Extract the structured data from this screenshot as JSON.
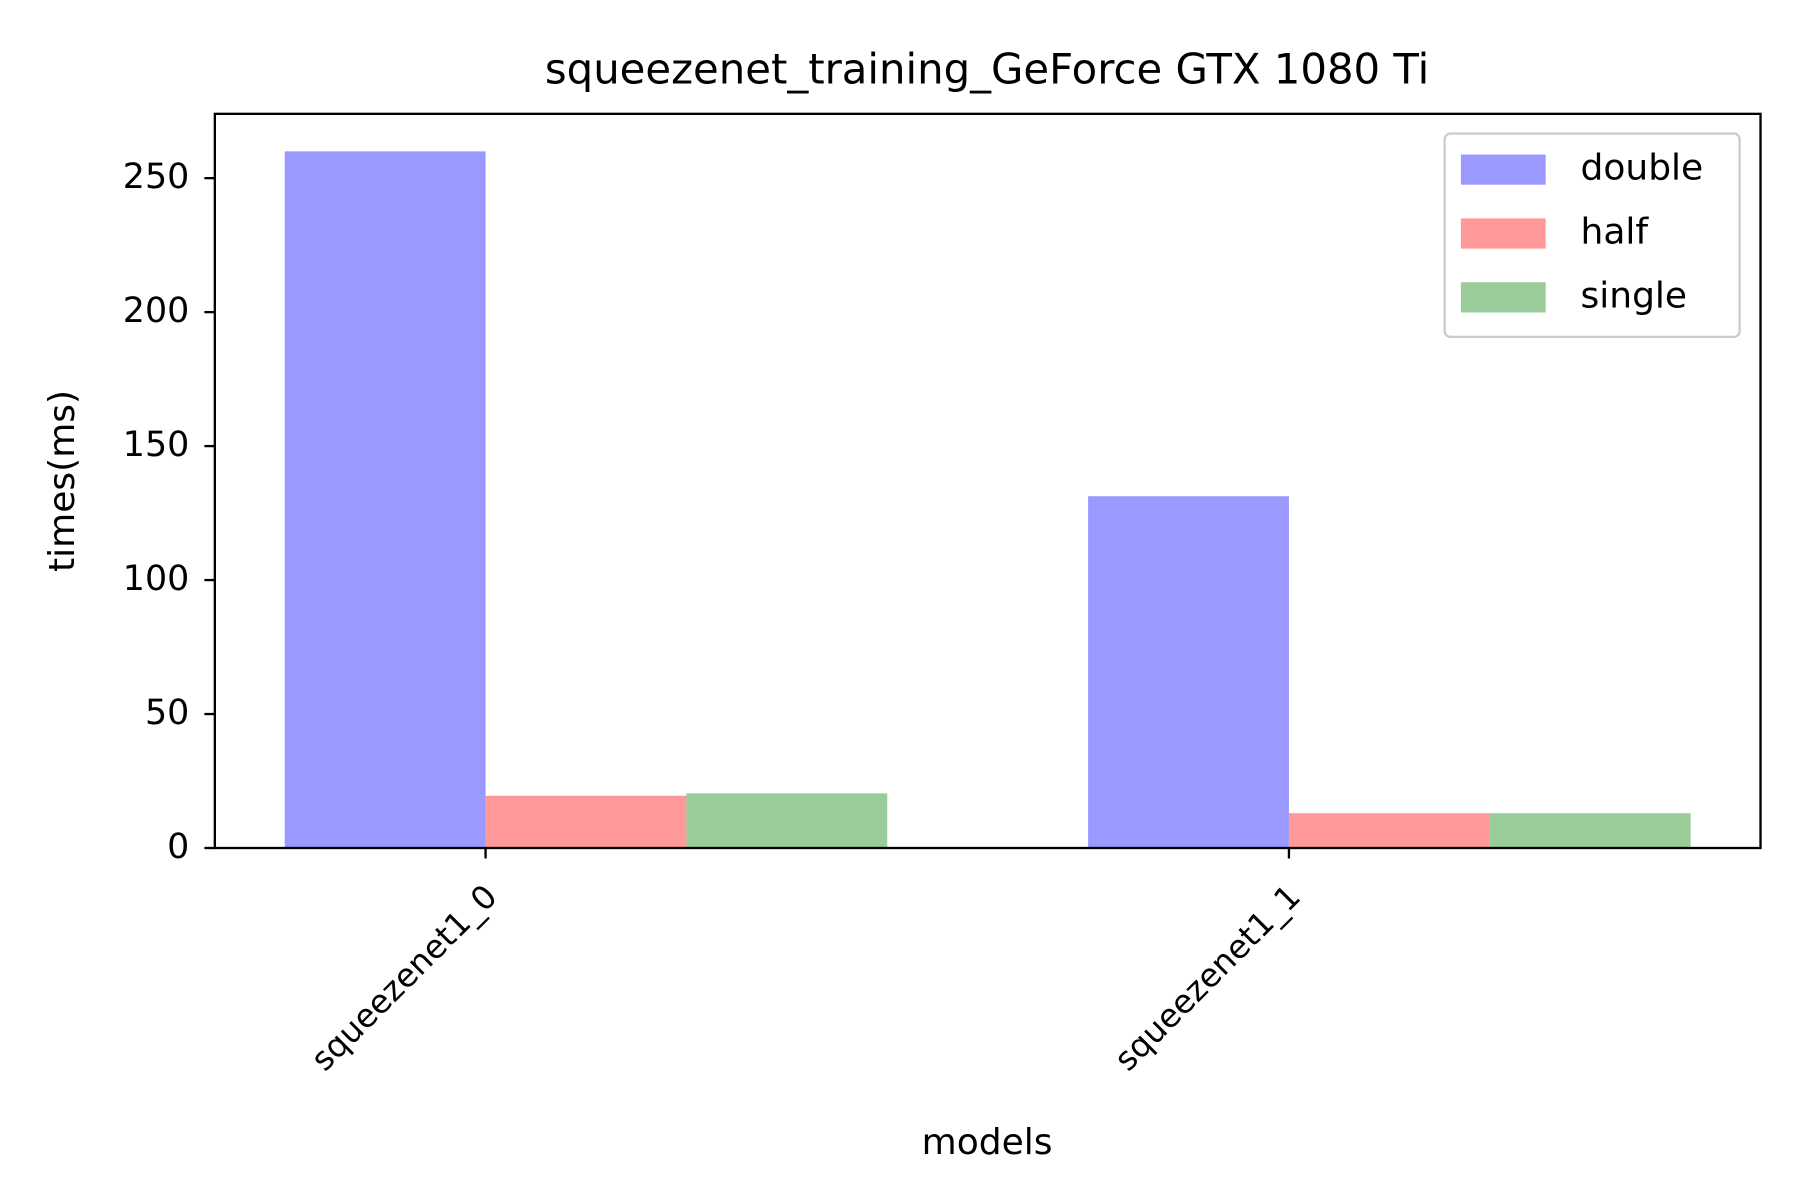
{
  "chart_data": {
    "type": "bar",
    "title": "squeezenet_training_GeForce GTX 1080 Ti",
    "x_label": "models",
    "y_label": "times(ms)",
    "categories": [
      "squeezenet1_0",
      "squeezenet1_1"
    ],
    "series": [
      {
        "name": "double",
        "color": "#9999ff",
        "values": [
          260,
          131.3
        ]
      },
      {
        "name": "half",
        "color": "#ff9999",
        "values": [
          19.5,
          13
        ]
      },
      {
        "name": "single",
        "color": "#99cc99",
        "values": [
          20.4,
          13
        ]
      }
    ],
    "ylim": [
      0,
      274
    ],
    "yticks": [
      0,
      50,
      100,
      150,
      200,
      250
    ],
    "grid": false,
    "legend": "upper right"
  }
}
